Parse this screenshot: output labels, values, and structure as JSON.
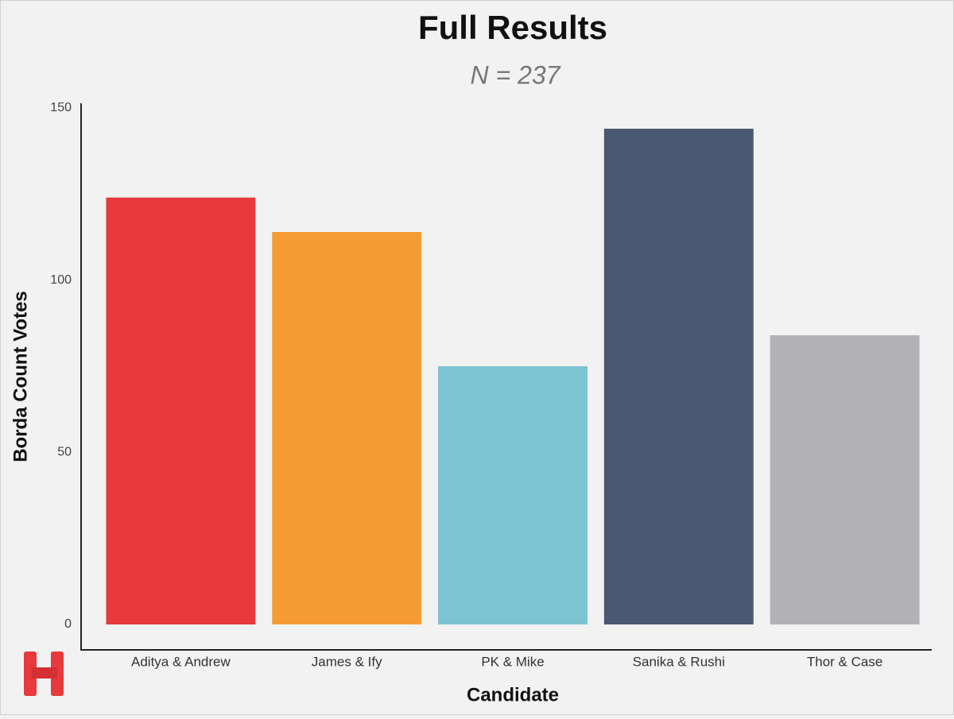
{
  "chart_data": {
    "type": "bar",
    "title": "Full Results",
    "subtitle": "N = 237",
    "x_label": "Candidate",
    "y_label": "Borda Count Votes",
    "categories": [
      "Aditya & Andrew",
      "James & Ify",
      "PK & Mike",
      "Sanika & Rushi",
      "Thor & Case"
    ],
    "values": [
      124,
      114,
      75,
      144,
      84
    ],
    "colors": [
      "#e8393c",
      "#f59d33",
      "#7dc4d3",
      "#4a5872",
      "#b2b1b6"
    ],
    "ylim": [
      0,
      150
    ],
    "yticks": [
      0,
      50,
      100,
      150
    ],
    "grid": false
  }
}
